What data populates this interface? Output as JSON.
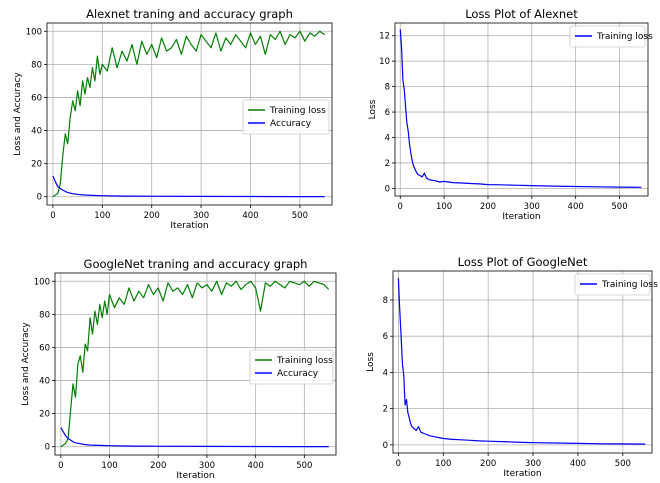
{
  "chart_data": [
    {
      "type": "line",
      "title": "Alexnet traning and accuracy graph",
      "xlabel": "Iteration",
      "ylabel": "Loss and Accuracy",
      "xlim": [
        -12,
        565
      ],
      "ylim": [
        -5,
        105
      ],
      "xticks": [
        0,
        100,
        200,
        300,
        400,
        500
      ],
      "yticks": [
        0,
        20,
        40,
        60,
        80,
        100
      ],
      "grid": true,
      "legend_position": "center-right",
      "series": [
        {
          "name": "Training loss",
          "color": "#008000",
          "x": [
            0,
            10,
            15,
            20,
            25,
            30,
            35,
            40,
            45,
            50,
            55,
            60,
            65,
            70,
            75,
            80,
            85,
            90,
            95,
            100,
            110,
            120,
            130,
            140,
            150,
            160,
            170,
            180,
            190,
            200,
            210,
            220,
            230,
            240,
            250,
            260,
            270,
            280,
            290,
            300,
            310,
            320,
            330,
            340,
            350,
            360,
            370,
            380,
            390,
            400,
            410,
            420,
            430,
            440,
            450,
            460,
            470,
            480,
            490,
            500,
            510,
            520,
            530,
            540,
            550
          ],
          "y": [
            0,
            2,
            8,
            25,
            38,
            32,
            48,
            58,
            52,
            64,
            55,
            70,
            62,
            72,
            66,
            78,
            70,
            85,
            74,
            80,
            76,
            90,
            78,
            88,
            82,
            92,
            80,
            94,
            86,
            92,
            84,
            96,
            88,
            90,
            95,
            86,
            97,
            92,
            88,
            98,
            94,
            90,
            99,
            88,
            96,
            92,
            98,
            94,
            90,
            99,
            92,
            97,
            86,
            98,
            95,
            100,
            92,
            98,
            96,
            100,
            94,
            99,
            97,
            100,
            98
          ]
        },
        {
          "name": "Accuracy",
          "color": "#0000ff",
          "x": [
            0,
            5,
            10,
            15,
            20,
            25,
            30,
            40,
            50,
            60,
            80,
            100,
            150,
            200,
            300,
            400,
            500,
            550
          ],
          "y": [
            12.5,
            9,
            6,
            5,
            4,
            3.2,
            2.5,
            1.8,
            1.4,
            1.1,
            0.8,
            0.6,
            0.4,
            0.3,
            0.2,
            0.15,
            0.1,
            0.1
          ]
        }
      ]
    },
    {
      "type": "line",
      "title": "Loss Plot of Alexnet",
      "xlabel": "Iteration",
      "ylabel": "Loss",
      "xlim": [
        -12,
        565
      ],
      "ylim": [
        -0.6,
        13
      ],
      "xticks": [
        0,
        100,
        200,
        300,
        400,
        500
      ],
      "yticks": [
        0,
        2,
        4,
        6,
        8,
        10,
        12
      ],
      "grid": true,
      "legend_position": "top-right",
      "series": [
        {
          "name": "Training loss",
          "color": "#0000ff",
          "x": [
            0,
            3,
            6,
            9,
            12,
            15,
            18,
            21,
            24,
            27,
            30,
            35,
            40,
            45,
            50,
            55,
            60,
            65,
            70,
            80,
            90,
            100,
            120,
            140,
            160,
            180,
            200,
            230,
            260,
            300,
            350,
            400,
            450,
            500,
            550
          ],
          "y": [
            12.5,
            11,
            8.5,
            7.8,
            6.5,
            5.2,
            4.5,
            3.5,
            2.8,
            2.2,
            1.8,
            1.4,
            1.1,
            1.0,
            0.9,
            1.2,
            0.8,
            0.7,
            0.65,
            0.6,
            0.5,
            0.55,
            0.45,
            0.42,
            0.38,
            0.35,
            0.3,
            0.28,
            0.25,
            0.22,
            0.18,
            0.15,
            0.12,
            0.1,
            0.08
          ]
        }
      ]
    },
    {
      "type": "line",
      "title": "GoogleNet traning and accuracy graph",
      "xlabel": "Iteration",
      "ylabel": "Loss and Accuracy",
      "xlim": [
        -12,
        565
      ],
      "ylim": [
        -5,
        105
      ],
      "xticks": [
        0,
        100,
        200,
        300,
        400,
        500
      ],
      "yticks": [
        0,
        20,
        40,
        60,
        80,
        100
      ],
      "grid": true,
      "legend_position": "center-right",
      "series": [
        {
          "name": "Training loss",
          "color": "#008000",
          "x": [
            0,
            10,
            15,
            20,
            25,
            30,
            35,
            40,
            45,
            50,
            55,
            60,
            65,
            70,
            75,
            80,
            85,
            90,
            95,
            100,
            110,
            120,
            130,
            140,
            150,
            160,
            170,
            180,
            190,
            200,
            210,
            220,
            230,
            240,
            250,
            260,
            270,
            280,
            290,
            300,
            310,
            320,
            330,
            340,
            350,
            360,
            370,
            380,
            390,
            400,
            410,
            420,
            430,
            440,
            450,
            460,
            470,
            480,
            490,
            500,
            510,
            520,
            530,
            540,
            550
          ],
          "y": [
            0,
            2,
            5,
            22,
            38,
            30,
            50,
            55,
            45,
            62,
            58,
            78,
            68,
            82,
            74,
            86,
            78,
            88,
            80,
            92,
            84,
            90,
            86,
            96,
            88,
            94,
            90,
            98,
            92,
            96,
            88,
            99,
            94,
            96,
            92,
            98,
            90,
            99,
            96,
            98,
            94,
            100,
            92,
            99,
            97,
            100,
            95,
            98,
            100,
            96,
            82,
            99,
            97,
            100,
            98,
            96,
            100,
            99,
            98,
            100,
            97,
            100,
            99,
            98,
            95
          ]
        },
        {
          "name": "Accuracy",
          "color": "#0000ff",
          "x": [
            0,
            5,
            10,
            15,
            20,
            25,
            30,
            40,
            50,
            60,
            80,
            100,
            150,
            200,
            300,
            400,
            500,
            550
          ],
          "y": [
            11.5,
            9,
            6.5,
            5,
            4,
            3,
            2.4,
            1.8,
            1.3,
            1,
            0.8,
            0.6,
            0.4,
            0.3,
            0.2,
            0.15,
            0.1,
            0.1
          ]
        }
      ]
    },
    {
      "type": "line",
      "title": "Loss Plot of GoogleNet",
      "xlabel": "Iteration",
      "ylabel": "Loss",
      "xlim": [
        -12,
        565
      ],
      "ylim": [
        -0.45,
        9.6
      ],
      "xticks": [
        0,
        100,
        200,
        300,
        400,
        500
      ],
      "yticks": [
        0,
        2,
        4,
        6,
        8
      ],
      "grid": true,
      "legend_position": "top-right",
      "series": [
        {
          "name": "Training loss",
          "color": "#0000ff",
          "x": [
            0,
            3,
            6,
            9,
            12,
            15,
            18,
            21,
            24,
            27,
            30,
            35,
            40,
            45,
            50,
            60,
            70,
            80,
            90,
            100,
            120,
            140,
            160,
            180,
            200,
            230,
            260,
            300,
            350,
            400,
            450,
            500,
            550
          ],
          "y": [
            9.2,
            7.5,
            6,
            4.5,
            3.8,
            2.2,
            2.5,
            1.8,
            1.5,
            1.2,
            1.0,
            0.9,
            0.8,
            1.0,
            0.7,
            0.6,
            0.5,
            0.45,
            0.4,
            0.35,
            0.3,
            0.28,
            0.25,
            0.22,
            0.2,
            0.18,
            0.15,
            0.12,
            0.1,
            0.08,
            0.06,
            0.05,
            0.04
          ]
        }
      ]
    }
  ]
}
